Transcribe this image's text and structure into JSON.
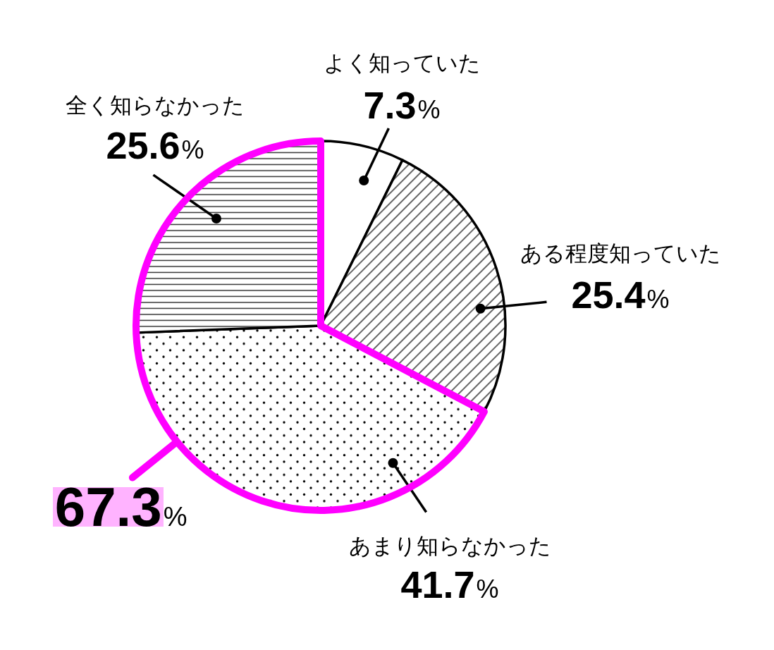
{
  "chart_data": {
    "type": "pie",
    "categories": [
      "よく知っていた",
      "ある程度知っていた",
      "あまり知らなかった",
      "全く知らなかった"
    ],
    "values": [
      7.3,
      25.4,
      41.7,
      25.6
    ],
    "colors": [
      "#ffffff",
      "#000000",
      "#000000",
      "#000000"
    ],
    "value_labels": [
      "7.3%",
      "25.4%",
      "41.7%",
      "25.6%"
    ],
    "annotations": [
      "67.3%"
    ]
  }
}
